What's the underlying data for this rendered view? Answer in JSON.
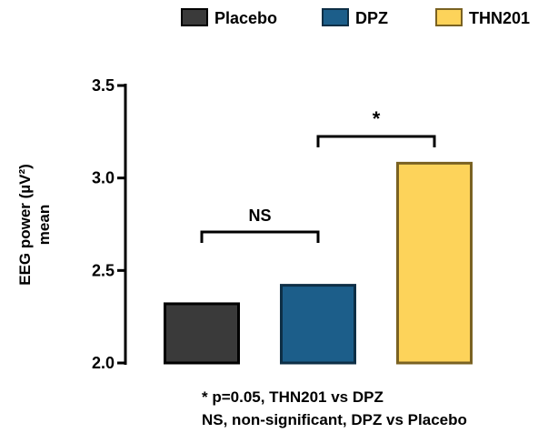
{
  "chart_data": {
    "type": "bar",
    "categories": [
      "Placebo",
      "DPZ",
      "THN201"
    ],
    "values": [
      2.32,
      2.42,
      3.08
    ],
    "ylabel_line1": "EEG power (µV²)",
    "ylabel_line2": "mean",
    "ylim": [
      2.0,
      3.5
    ],
    "yticks": [
      "2.0",
      "2.5",
      "3.0",
      "3.5"
    ],
    "legend_position": "top",
    "grid": false,
    "colors": {
      "Placebo": "#3a3a3a",
      "DPZ": "#1c5e8a",
      "THN201": "#fdd35a"
    },
    "edge_colors": {
      "Placebo": "#000000",
      "DPZ": "#0e2f46",
      "THN201": "#7a6222"
    },
    "brackets": [
      {
        "from": "Placebo",
        "to": "DPZ",
        "label": "NS"
      },
      {
        "from": "DPZ",
        "to": "THN201",
        "label": "*"
      }
    ],
    "footnotes": [
      "* p=0.05, THN201 vs DPZ",
      "NS, non-significant, DPZ vs Placebo"
    ]
  }
}
